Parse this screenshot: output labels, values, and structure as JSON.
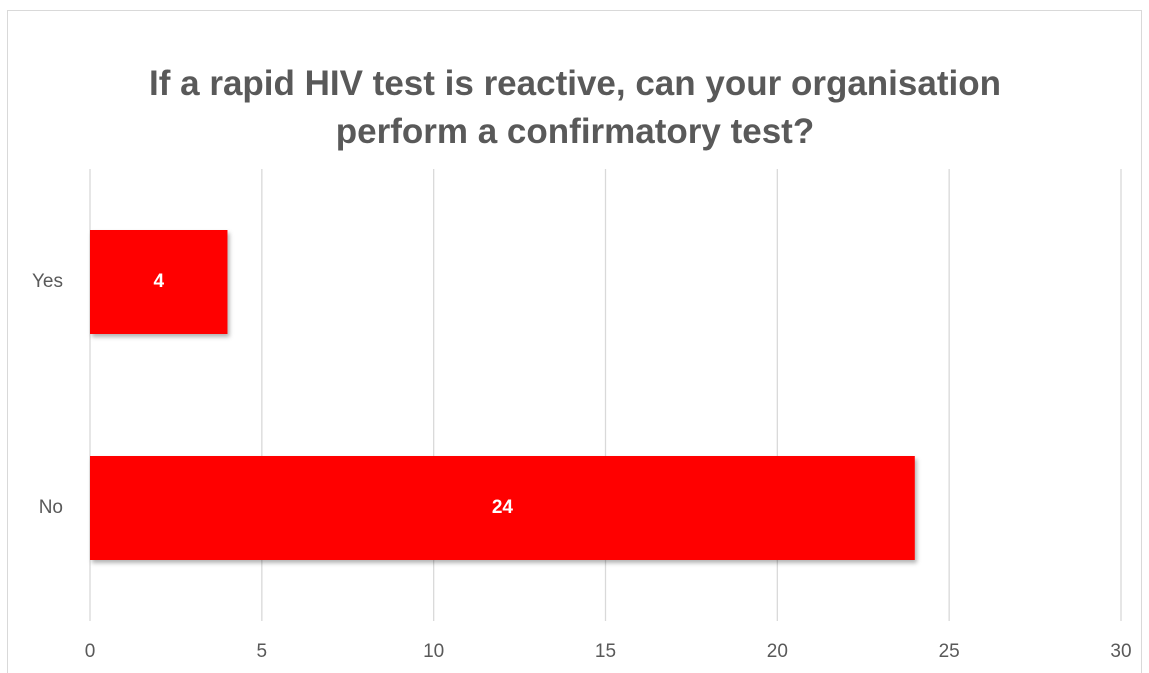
{
  "chart_data": {
    "type": "bar",
    "orientation": "horizontal",
    "title": "If a rapid HIV test is reactive, can your organisation perform a confirmatory test?",
    "categories": [
      "Yes",
      "No"
    ],
    "values": [
      4,
      24
    ],
    "color": "#ff0000",
    "xlim": [
      0,
      30
    ],
    "xticks": [
      0,
      5,
      10,
      15,
      20,
      25,
      30
    ],
    "grid": true
  }
}
